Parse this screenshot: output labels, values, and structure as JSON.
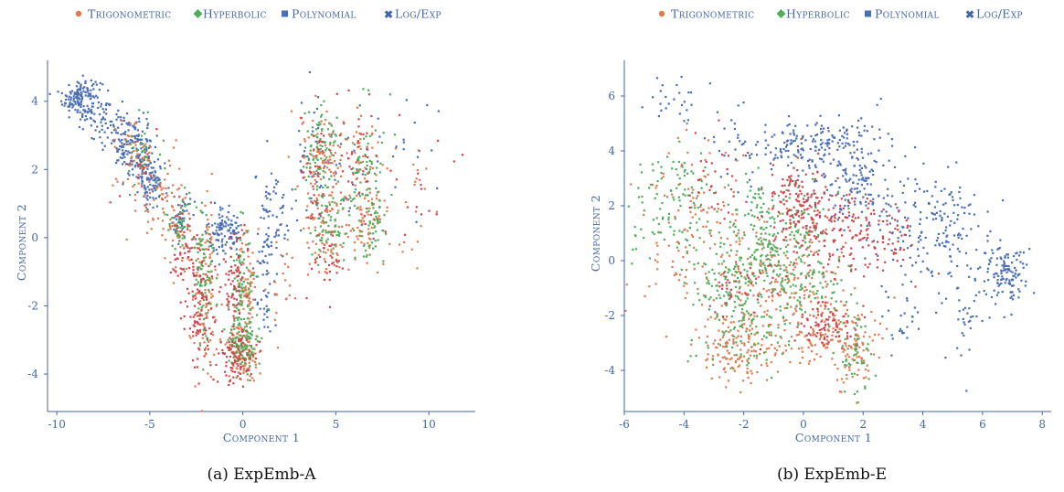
{
  "colors": {
    "trigonometric": "#e07a4f",
    "hyperbolic": "#4fae5a",
    "polynomial": "#4a6fb5",
    "logexp": "#d0454c",
    "axis": "#4466aa"
  },
  "chart_data": [
    {
      "type": "scatter",
      "caption": "(a) ExpEmb-A",
      "xlabel": "Component 1",
      "ylabel": "Component 2",
      "xlim": [
        -10.5,
        12.5
      ],
      "ylim": [
        -5.1,
        5.2
      ],
      "xticks": [
        "-10",
        "-5",
        "0",
        "5",
        "10"
      ],
      "xtick_values": [
        -10,
        -5,
        0,
        5,
        10
      ],
      "yticks": [
        "-4",
        "-2",
        "0",
        "2",
        "4"
      ],
      "ytick_values": [
        -4,
        -2,
        0,
        2,
        4
      ],
      "legend": {
        "position": "top",
        "entries": [
          {
            "name": "Trigonometric",
            "marker": "circle",
            "color": "#e07a4f"
          },
          {
            "name": "Hyperbolic",
            "marker": "diamond",
            "color": "#4fae5a"
          },
          {
            "name": "Polynomial",
            "marker": "square",
            "color": "#4a6fb5"
          },
          {
            "name": "Log/Exp",
            "marker": "x",
            "color": "#d0454c"
          }
        ]
      },
      "series": [
        {
          "name": "Polynomial",
          "clusters": [
            [
              -8.8,
              4.1,
              0.45,
              0.3,
              140
            ],
            [
              -7.6,
              3.6,
              0.5,
              0.4,
              60
            ],
            [
              -6.2,
              2.8,
              0.5,
              0.4,
              110
            ],
            [
              -5.3,
              2.2,
              0.4,
              0.5,
              90
            ],
            [
              -4.8,
              1.5,
              0.3,
              0.3,
              50
            ],
            [
              -3.4,
              0.6,
              0.3,
              0.4,
              40
            ],
            [
              -1.3,
              0.2,
              0.3,
              0.4,
              60
            ],
            [
              -0.6,
              0.3,
              0.3,
              0.3,
              50
            ],
            [
              1.6,
              0.6,
              0.5,
              0.8,
              70
            ],
            [
              1.2,
              -1.5,
              0.3,
              0.8,
              40
            ],
            [
              3.6,
              2.0,
              0.5,
              0.9,
              30
            ],
            [
              5.4,
              1.6,
              0.8,
              1.0,
              30
            ],
            [
              8.5,
              2.2,
              1.3,
              1.0,
              20
            ]
          ]
        },
        {
          "name": "Trigonometric",
          "clusters": [
            [
              -6.0,
              2.3,
              0.5,
              0.6,
              40
            ],
            [
              -4.7,
              1.3,
              0.6,
              0.7,
              50
            ],
            [
              -3.6,
              0.2,
              0.4,
              0.7,
              50
            ],
            [
              -2.0,
              -1.5,
              0.3,
              1.2,
              110
            ],
            [
              0.2,
              -1.5,
              0.3,
              1.0,
              90
            ],
            [
              -0.1,
              -3.4,
              0.5,
              0.4,
              90
            ],
            [
              4.3,
              2.4,
              0.6,
              0.7,
              90
            ],
            [
              4.5,
              0.3,
              0.6,
              0.7,
              80
            ],
            [
              6.5,
              1.8,
              0.5,
              1.2,
              70
            ],
            [
              6.7,
              0.2,
              0.5,
              0.6,
              40
            ],
            [
              9.5,
              1.0,
              1.0,
              1.2,
              20
            ],
            [
              2.2,
              -1.2,
              0.4,
              0.8,
              20
            ]
          ]
        },
        {
          "name": "Hyperbolic",
          "clusters": [
            [
              -5.4,
              2.4,
              0.5,
              0.5,
              30
            ],
            [
              -3.3,
              0.6,
              0.3,
              0.5,
              40
            ],
            [
              -2.1,
              -1.0,
              0.3,
              1.1,
              80
            ],
            [
              0.0,
              -1.6,
              0.3,
              1.0,
              90
            ],
            [
              0.0,
              -3.1,
              0.4,
              0.4,
              100
            ],
            [
              4.2,
              2.6,
              0.5,
              0.6,
              80
            ],
            [
              4.7,
              0.4,
              0.6,
              0.6,
              70
            ],
            [
              6.8,
              2.2,
              0.5,
              1.0,
              60
            ],
            [
              7.0,
              0.3,
              0.4,
              0.5,
              40
            ]
          ]
        },
        {
          "name": "Log/Exp",
          "clusters": [
            [
              -5.5,
              1.8,
              0.5,
              0.5,
              20
            ],
            [
              -3.2,
              -0.3,
              0.4,
              0.6,
              40
            ],
            [
              -2.3,
              -1.8,
              0.4,
              1.0,
              110
            ],
            [
              -0.5,
              -1.5,
              0.3,
              0.8,
              70
            ],
            [
              -0.3,
              -3.5,
              0.5,
              0.4,
              90
            ],
            [
              4.0,
              1.8,
              0.5,
              0.8,
              40
            ],
            [
              4.6,
              -0.8,
              0.4,
              0.5,
              30
            ],
            [
              6.2,
              2.5,
              0.5,
              0.9,
              40
            ],
            [
              9.5,
              1.5,
              1.0,
              1.0,
              15
            ]
          ]
        }
      ]
    },
    {
      "type": "scatter",
      "caption": "(b) ExpEmb-E",
      "xlabel": "Component 1",
      "ylabel": "Component 2",
      "xlim": [
        -6,
        8.3
      ],
      "ylim": [
        -5.5,
        7.3
      ],
      "xticks": [
        "-6",
        "-4",
        "-2",
        "0",
        "2",
        "4",
        "6",
        "8"
      ],
      "xtick_values": [
        -6,
        -4,
        -2,
        0,
        2,
        4,
        6,
        8
      ],
      "yticks": [
        "-4",
        "-2",
        "0",
        "2",
        "4",
        "6"
      ],
      "ytick_values": [
        -4,
        -2,
        0,
        2,
        4,
        6
      ],
      "legend": {
        "position": "top",
        "entries": [
          {
            "name": "Trigonometric",
            "marker": "circle",
            "color": "#e07a4f"
          },
          {
            "name": "Hyperbolic",
            "marker": "diamond",
            "color": "#4fae5a"
          },
          {
            "name": "Polynomial",
            "marker": "square",
            "color": "#4a6fb5"
          },
          {
            "name": "Log/Exp",
            "marker": "x",
            "color": "#d0454c"
          }
        ]
      },
      "series": [
        {
          "name": "Polynomial",
          "clusters": [
            [
              -4.4,
              5.9,
              0.5,
              0.5,
              25
            ],
            [
              -0.5,
              4.2,
              0.7,
              0.5,
              90
            ],
            [
              1.6,
              3.2,
              0.8,
              1.0,
              180
            ],
            [
              4.2,
              1.3,
              1.0,
              0.9,
              180
            ],
            [
              6.7,
              -0.5,
              0.4,
              0.5,
              120
            ],
            [
              5.4,
              -2.0,
              0.5,
              1.0,
              40
            ],
            [
              3.5,
              -2.2,
              0.4,
              0.6,
              25
            ],
            [
              0.8,
              4.5,
              0.6,
              0.3,
              40
            ],
            [
              -2.5,
              4.2,
              0.6,
              0.8,
              25
            ]
          ]
        },
        {
          "name": "Trigonometric",
          "clusters": [
            [
              -3.8,
              1.0,
              0.9,
              1.7,
              120
            ],
            [
              -2.2,
              -3.2,
              0.7,
              0.6,
              140
            ],
            [
              -0.8,
              -1.0,
              1.0,
              0.9,
              150
            ],
            [
              0.8,
              -2.6,
              1.0,
              0.7,
              130
            ],
            [
              1.8,
              -3.6,
              0.3,
              0.6,
              50
            ],
            [
              -1.0,
              1.0,
              1.0,
              1.0,
              60
            ]
          ]
        },
        {
          "name": "Hyperbolic",
          "clusters": [
            [
              -4.3,
              2.0,
              0.8,
              1.2,
              120
            ],
            [
              -1.0,
              0.7,
              0.9,
              1.0,
              250
            ],
            [
              -2.6,
              -1.0,
              0.6,
              0.5,
              70
            ],
            [
              -1.7,
              -2.5,
              0.9,
              0.8,
              90
            ],
            [
              1.7,
              -3.3,
              0.3,
              0.7,
              50
            ],
            [
              0.3,
              -0.9,
              0.8,
              0.6,
              60
            ]
          ]
        },
        {
          "name": "Log/Exp",
          "clusters": [
            [
              0.0,
              2.0,
              0.6,
              0.8,
              160
            ],
            [
              1.2,
              1.0,
              0.8,
              0.7,
              110
            ],
            [
              0.7,
              -2.5,
              0.6,
              0.5,
              80
            ],
            [
              -2.2,
              -1.0,
              0.5,
              0.5,
              40
            ],
            [
              -3.0,
              3.0,
              0.6,
              0.8,
              30
            ],
            [
              2.6,
              0.6,
              0.6,
              0.6,
              50
            ]
          ]
        }
      ]
    }
  ]
}
